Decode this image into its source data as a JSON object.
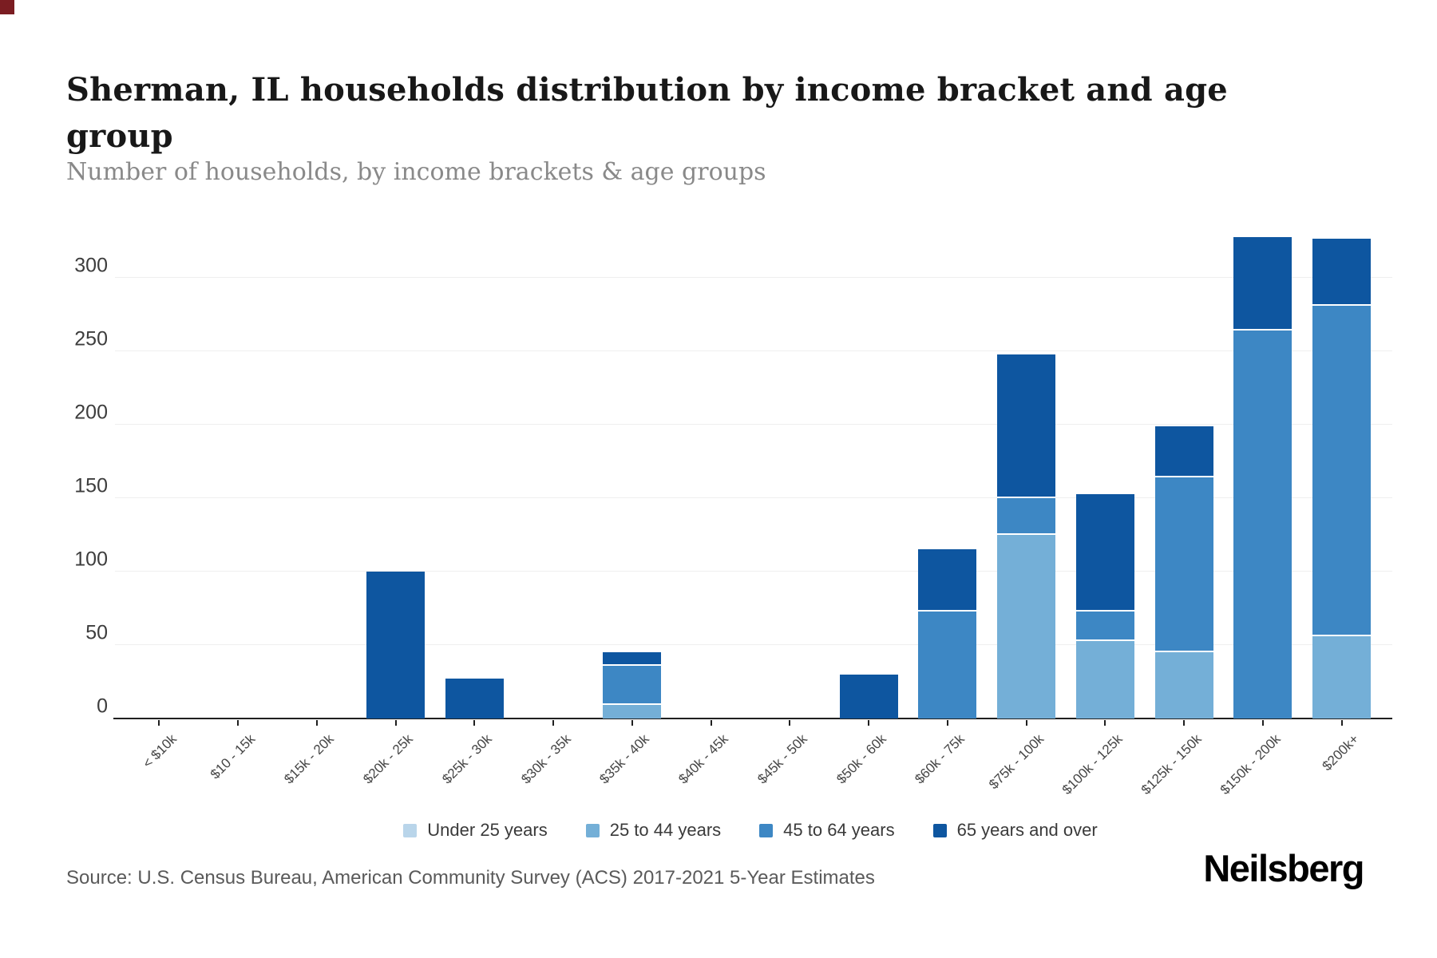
{
  "decor": {
    "corner_artifact_color": "#7b1d22"
  },
  "header": {
    "title": "Sherman, IL households distribution by income bracket and age group",
    "subtitle": "Number of households, by income brackets & age groups"
  },
  "chart_data": {
    "type": "bar",
    "stacked": true,
    "title": "Sherman, IL households distribution by income bracket and age group",
    "xlabel": "",
    "ylabel": "Number of households",
    "categories": [
      "< $10k",
      "$10 - 15k",
      "$15k - 20k",
      "$20k - 25k",
      "$25k - 30k",
      "$30k - 35k",
      "$35k - 40k",
      "$40k - 45k",
      "$45k - 50k",
      "$50k - 60k",
      "$60k - 75k",
      "$75k - 100k",
      "$100k - 125k",
      "$125k - 150k",
      "$150k - 200k",
      "$200k+"
    ],
    "series": [
      {
        "name": "Under 25 years",
        "color": "#b9d5ea",
        "values": [
          0,
          0,
          0,
          0,
          0,
          0,
          0,
          0,
          0,
          0,
          0,
          0,
          0,
          0,
          0,
          0
        ]
      },
      {
        "name": "25 to 44 years",
        "color": "#74afd7",
        "values": [
          0,
          0,
          0,
          0,
          0,
          0,
          9,
          0,
          0,
          0,
          0,
          125,
          53,
          45,
          0,
          56
        ]
      },
      {
        "name": "45 to 64 years",
        "color": "#3d87c4",
        "values": [
          0,
          0,
          0,
          0,
          0,
          0,
          27,
          0,
          0,
          0,
          73,
          25,
          20,
          119,
          264,
          225
        ]
      },
      {
        "name": "65 years and over",
        "color": "#0e56a0",
        "values": [
          0,
          0,
          0,
          100,
          27,
          0,
          9,
          0,
          0,
          30,
          42,
          98,
          80,
          35,
          64,
          46
        ]
      }
    ],
    "yticks": [
      0,
      50,
      100,
      150,
      200,
      250,
      300
    ],
    "ylim": [
      0,
      330
    ],
    "grid": true,
    "legend_position": "bottom",
    "x_label_rotation": -45
  },
  "footer": {
    "source": "Source: U.S. Census Bureau, American Community Survey (ACS) 2017-2021 5-Year Estimates",
    "brand": "Neilsberg"
  }
}
